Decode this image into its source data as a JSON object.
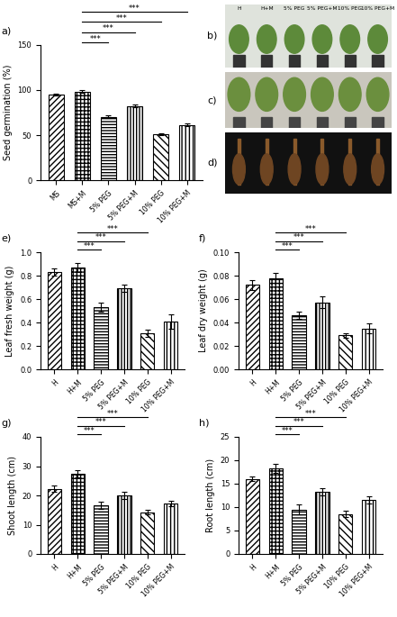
{
  "chart_data": [
    {
      "panel": "a)",
      "type": "bar",
      "y_label": "Seed germination (%)",
      "categories": [
        "MS",
        "MS+M",
        "5% PEG",
        "5% PEG+M",
        "10% PEG",
        "10% PEG+M"
      ],
      "values": [
        95,
        98,
        70,
        82,
        51,
        61
      ],
      "errors": [
        1.2,
        1.5,
        1.5,
        1.5,
        1.2,
        1.5
      ],
      "color": "#ffffff",
      "ylim": [
        0,
        150
      ],
      "yticks": [
        0,
        50,
        100,
        150
      ],
      "comparisons": [
        {
          "from": "MS+M",
          "to": "5% PEG",
          "label": "***"
        },
        {
          "from": "MS+M",
          "to": "5% PEG+M",
          "label": "***"
        },
        {
          "from": "MS+M",
          "to": "10% PEG",
          "label": "***"
        },
        {
          "from": "MS+M",
          "to": "10% PEG+M",
          "label": "***"
        }
      ]
    },
    {
      "panel": "e)",
      "type": "bar",
      "y_label": "Leaf fresh weight (g)",
      "categories": [
        "H",
        "H+M",
        "5% PEG",
        "5% PEG+M",
        "10% PEG",
        "10% PEG+M"
      ],
      "values": [
        0.83,
        0.87,
        0.53,
        0.69,
        0.31,
        0.41
      ],
      "errors": [
        0.03,
        0.04,
        0.04,
        0.03,
        0.03,
        0.06
      ],
      "color": "#ffffff",
      "ylim": [
        0,
        1.0
      ],
      "yticks": [
        {
          "value": 0,
          "label": "0.0"
        },
        {
          "value": 0.2,
          "label": "0.2"
        },
        {
          "value": 0.4,
          "label": "0.4"
        },
        {
          "value": 0.6,
          "label": "0.6"
        },
        {
          "value": 0.8,
          "label": "0.8"
        },
        {
          "value": 1.0,
          "label": "1.0"
        }
      ],
      "comparisons": [
        {
          "from": "H+M",
          "to": "5% PEG",
          "label": "***"
        },
        {
          "from": "H+M",
          "to": "5% PEG+M",
          "label": "***"
        },
        {
          "from": "H+M",
          "to": "10% PEG",
          "label": "***"
        }
      ]
    },
    {
      "panel": "f)",
      "type": "bar",
      "y_label": "Leaf dry weight (g)",
      "categories": [
        "H",
        "H+M",
        "5% PEG",
        "5% PEG+M",
        "10% PEG",
        "10% PEG+M"
      ],
      "values": [
        0.072,
        0.078,
        0.046,
        0.057,
        0.029,
        0.035
      ],
      "errors": [
        0.004,
        0.004,
        0.003,
        0.005,
        0.002,
        0.004
      ],
      "color": "#ffffff",
      "ylim": [
        0,
        0.1
      ],
      "yticks": [
        {
          "value": 0,
          "label": "0.00"
        },
        {
          "value": 0.02,
          "label": "0.02"
        },
        {
          "value": 0.04,
          "label": "0.04"
        },
        {
          "value": 0.06,
          "label": "0.06"
        },
        {
          "value": 0.08,
          "label": "0.08"
        },
        {
          "value": 0.1,
          "label": "0.10"
        }
      ],
      "comparisons": [
        {
          "from": "H+M",
          "to": "5% PEG",
          "label": "***"
        },
        {
          "from": "H+M",
          "to": "5% PEG+M",
          "label": "***"
        },
        {
          "from": "H+M",
          "to": "10% PEG",
          "label": "***"
        }
      ]
    },
    {
      "panel": "g)",
      "type": "bar",
      "y_label": "Shoot length (cm)",
      "categories": [
        "H",
        "H+M",
        "5% PEG",
        "5% PEG+M",
        "10% PEG",
        "10% PEG+M"
      ],
      "values": [
        22.3,
        27.5,
        16.5,
        20.0,
        14.3,
        17.3
      ],
      "errors": [
        1.0,
        1.2,
        1.2,
        1.2,
        0.9,
        0.9
      ],
      "color": "#ffffff",
      "ylim": [
        0,
        40
      ],
      "yticks": [
        0,
        10,
        20,
        30,
        40
      ],
      "comparisons": [
        {
          "from": "H+M",
          "to": "5% PEG",
          "label": "***"
        },
        {
          "from": "H+M",
          "to": "5% PEG+M",
          "label": "***"
        },
        {
          "from": "H+M",
          "to": "10% PEG",
          "label": "***"
        }
      ]
    },
    {
      "panel": "h)",
      "type": "bar",
      "y_label": "Root length (cm)",
      "categories": [
        "H",
        "H+M",
        "5% PEG",
        "5% PEG+M",
        "10% PEG",
        "10% PEG+M"
      ],
      "values": [
        16.0,
        18.3,
        9.5,
        13.3,
        8.5,
        11.6
      ],
      "errors": [
        0.5,
        1.0,
        1.0,
        0.8,
        0.7,
        0.8
      ],
      "color": "#ffffff",
      "ylim": [
        0,
        25
      ],
      "yticks": [
        0,
        5,
        10,
        15,
        20,
        25
      ],
      "comparisons": [
        {
          "from": "H+M",
          "to": "5% PEG",
          "label": "***"
        },
        {
          "from": "H+M",
          "to": "5% PEG+M",
          "label": "***"
        },
        {
          "from": "H+M",
          "to": "10% PEG",
          "label": "***"
        }
      ]
    }
  ],
  "photos": [
    {
      "panel": "b)",
      "labels": [
        "H",
        "H+M",
        "5% PEG",
        "5% PEG+M",
        "10% PEG",
        "10% PEG+M"
      ]
    },
    {
      "panel": "c)"
    },
    {
      "panel": "d)"
    }
  ]
}
